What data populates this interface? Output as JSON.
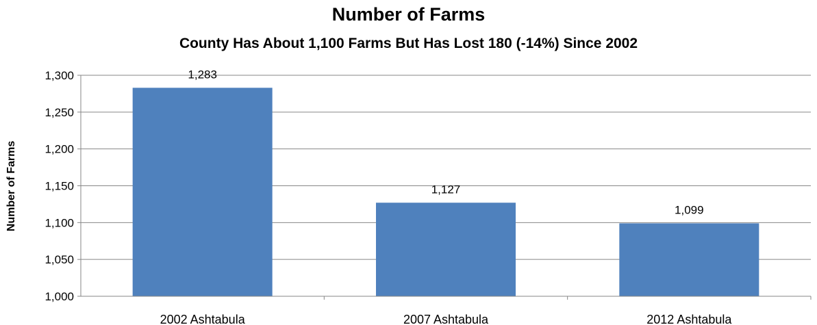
{
  "chart_data": {
    "type": "bar",
    "title": "Number of Farms",
    "subtitle": "County Has About 1,100 Farms But Has Lost 180 (-14%) Since 2002",
    "xlabel": "",
    "ylabel": "Number of Farms",
    "categories": [
      "2002 Ashtabula",
      "2007 Ashtabula",
      "2012 Ashtabula"
    ],
    "values": [
      1283,
      1127,
      1099
    ],
    "data_labels": [
      "1,283",
      "1,127",
      "1,099"
    ],
    "ylim": [
      1000,
      1300
    ],
    "y_ticks": [
      1000,
      1050,
      1100,
      1150,
      1200,
      1250,
      1300
    ],
    "y_tick_labels": [
      "1,000",
      "1,050",
      "1,100",
      "1,150",
      "1,200",
      "1,250",
      "1,300"
    ],
    "grid": true,
    "legend": "none",
    "colors": {
      "bar": "#4F81BD",
      "gridline": "#868686",
      "axis": "#868686"
    }
  }
}
